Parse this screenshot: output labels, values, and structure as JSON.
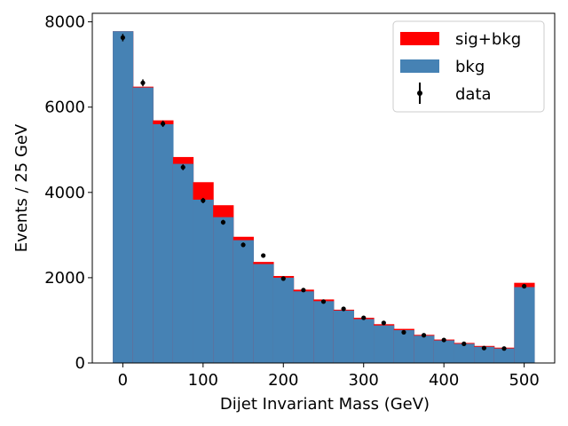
{
  "chart_data": {
    "type": "bar",
    "title": "",
    "xlabel": "Dijet Invariant Mass (GeV)",
    "ylabel": "Events / 25 GeV",
    "xlim": [
      -38,
      538
    ],
    "ylim": [
      0,
      8200
    ],
    "bin_width": 25,
    "bin_centers": [
      0,
      25,
      50,
      75,
      100,
      125,
      150,
      175,
      200,
      225,
      250,
      275,
      300,
      325,
      350,
      375,
      400,
      425,
      450,
      475,
      500
    ],
    "x_ticks": [
      0,
      100,
      200,
      300,
      400,
      500
    ],
    "x_tick_labels": [
      "0",
      "100",
      "200",
      "300",
      "400",
      "500"
    ],
    "y_ticks": [
      0,
      2000,
      4000,
      6000,
      8000
    ],
    "y_tick_labels": [
      "0",
      "2000",
      "4000",
      "6000",
      "8000"
    ],
    "grid": false,
    "legend": {
      "placement": "top-right",
      "entries": [
        "sig+bkg",
        "bkg",
        "data"
      ]
    },
    "series": [
      {
        "name": "sig+bkg",
        "kind": "stacked-histogram-top",
        "color": "#ff0000",
        "values": [
          7780,
          6480,
          5690,
          4830,
          4240,
          3700,
          2960,
          2370,
          2040,
          1720,
          1490,
          1250,
          1060,
          910,
          800,
          660,
          550,
          470,
          400,
          360,
          1880
        ]
      },
      {
        "name": "bkg",
        "kind": "histogram",
        "color": "#4682b4",
        "values": [
          7780,
          6460,
          5600,
          4670,
          3830,
          3420,
          2880,
          2320,
          2000,
          1680,
          1450,
          1230,
          1030,
          880,
          770,
          640,
          530,
          450,
          380,
          340,
          1780
        ]
      },
      {
        "name": "data",
        "kind": "points-with-errors",
        "color": "#000000",
        "values": [
          7630,
          6570,
          5610,
          4590,
          3810,
          3300,
          2770,
          2520,
          1980,
          1710,
          1440,
          1270,
          1060,
          940,
          720,
          650,
          540,
          450,
          350,
          340,
          1800
        ],
        "errors": [
          87,
          81,
          75,
          68,
          62,
          57,
          53,
          50,
          44,
          41,
          38,
          36,
          33,
          31,
          27,
          25,
          23,
          21,
          19,
          18,
          42
        ]
      }
    ]
  }
}
